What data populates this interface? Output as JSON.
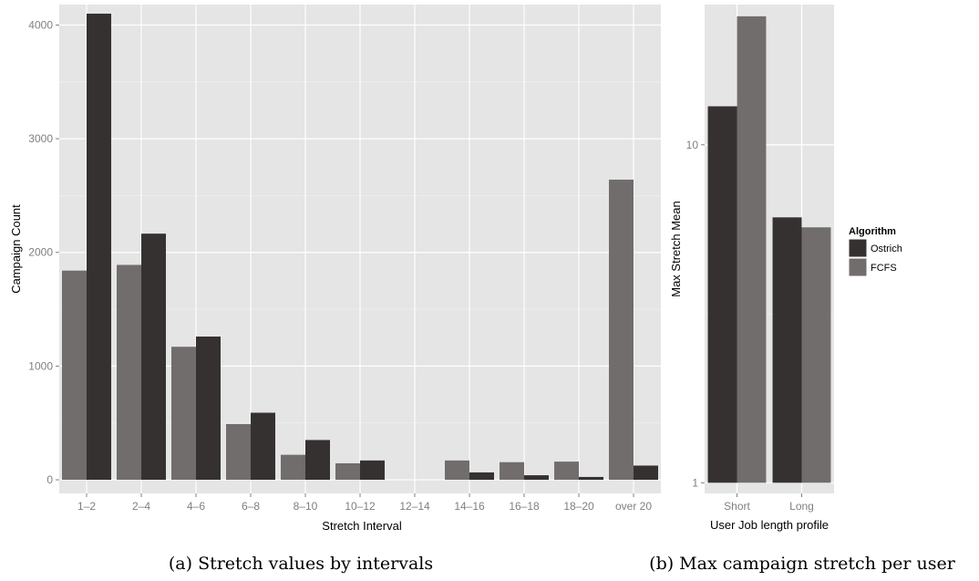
{
  "chart_data": [
    {
      "type": "bar",
      "xlabel": "Stretch Interval",
      "ylabel": "Campaign Count",
      "ylim": [
        -120,
        4180
      ],
      "yticks": [
        0,
        1000,
        2000,
        3000,
        4000
      ],
      "grid": true,
      "categories": [
        "1–2",
        "2–4",
        "4–6",
        "6–8",
        "8–10",
        "10–12",
        "12–14",
        "14–16",
        "16–18",
        "18–20",
        "over 20"
      ],
      "series": [
        {
          "name": "FCFS",
          "color": "#726d6d",
          "values": [
            1840,
            1890,
            1170,
            490,
            220,
            145,
            0,
            170,
            155,
            160,
            2640
          ]
        },
        {
          "name": "Ostrich",
          "color": "#363131",
          "values": [
            4100,
            2165,
            1260,
            590,
            350,
            170,
            0,
            65,
            40,
            25,
            125
          ]
        }
      ],
      "caption": "(a) Stretch values by intervals"
    },
    {
      "type": "bar",
      "xlabel": "User Job length profile",
      "ylabel": "Max Stretch Mean",
      "yscale": "log",
      "ylim": [
        0.93,
        26
      ],
      "yticks": [
        1,
        10
      ],
      "yticklabels": [
        "1",
        "10"
      ],
      "grid": true,
      "categories": [
        "Short",
        "Long"
      ],
      "series": [
        {
          "name": "Ostrich",
          "color": "#363131",
          "values": [
            13,
            6.1
          ]
        },
        {
          "name": "FCFS",
          "color": "#726d6d",
          "values": [
            24,
            5.7
          ]
        }
      ],
      "caption": "(b) Max campaign stretch per user"
    }
  ],
  "legend": {
    "title": "Algorithm",
    "items": [
      {
        "label": "Ostrich",
        "color": "#363131"
      },
      {
        "label": "FCFS",
        "color": "#726d6d"
      }
    ],
    "placement": "right"
  }
}
